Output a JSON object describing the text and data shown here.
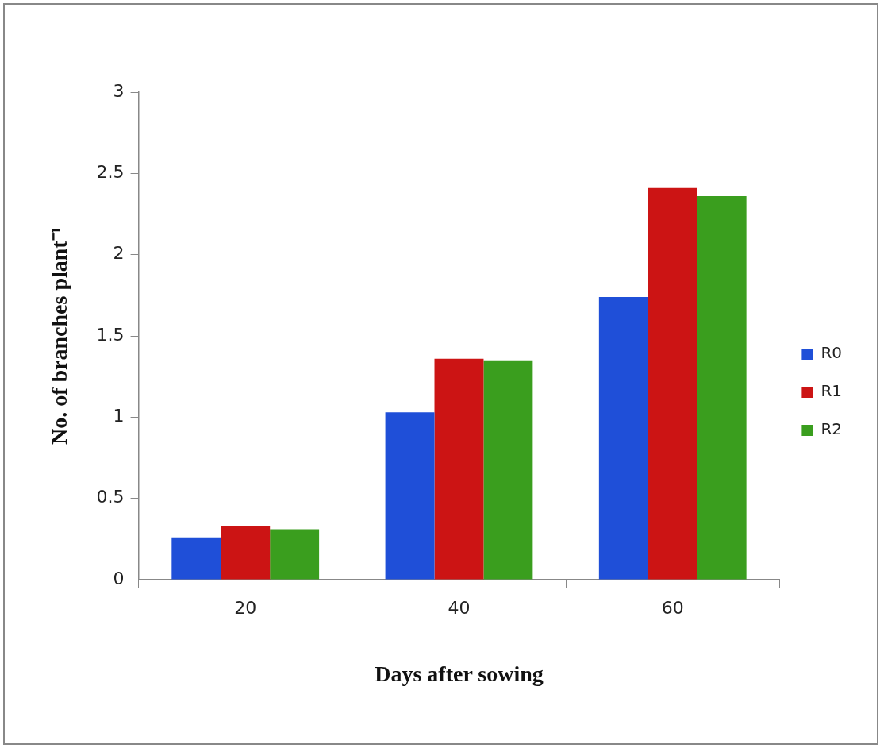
{
  "chart_data": {
    "type": "bar",
    "xlabel": "Days after sowing",
    "ylabel": "No. of branches plant⁻¹",
    "categories": [
      "20",
      "40",
      "60"
    ],
    "series": [
      {
        "name": "R0",
        "color": "#1f4fd8",
        "values": [
          0.26,
          1.03,
          1.74
        ]
      },
      {
        "name": "R1",
        "color": "#cc1414",
        "values": [
          0.33,
          1.36,
          2.41
        ]
      },
      {
        "name": "R2",
        "color": "#3a9e1e",
        "values": [
          0.31,
          1.35,
          2.36
        ]
      }
    ],
    "ylim": [
      0,
      3
    ],
    "yticks": [
      0,
      0.5,
      1,
      1.5,
      2,
      2.5,
      3
    ],
    "grid": false,
    "legend": "right"
  }
}
